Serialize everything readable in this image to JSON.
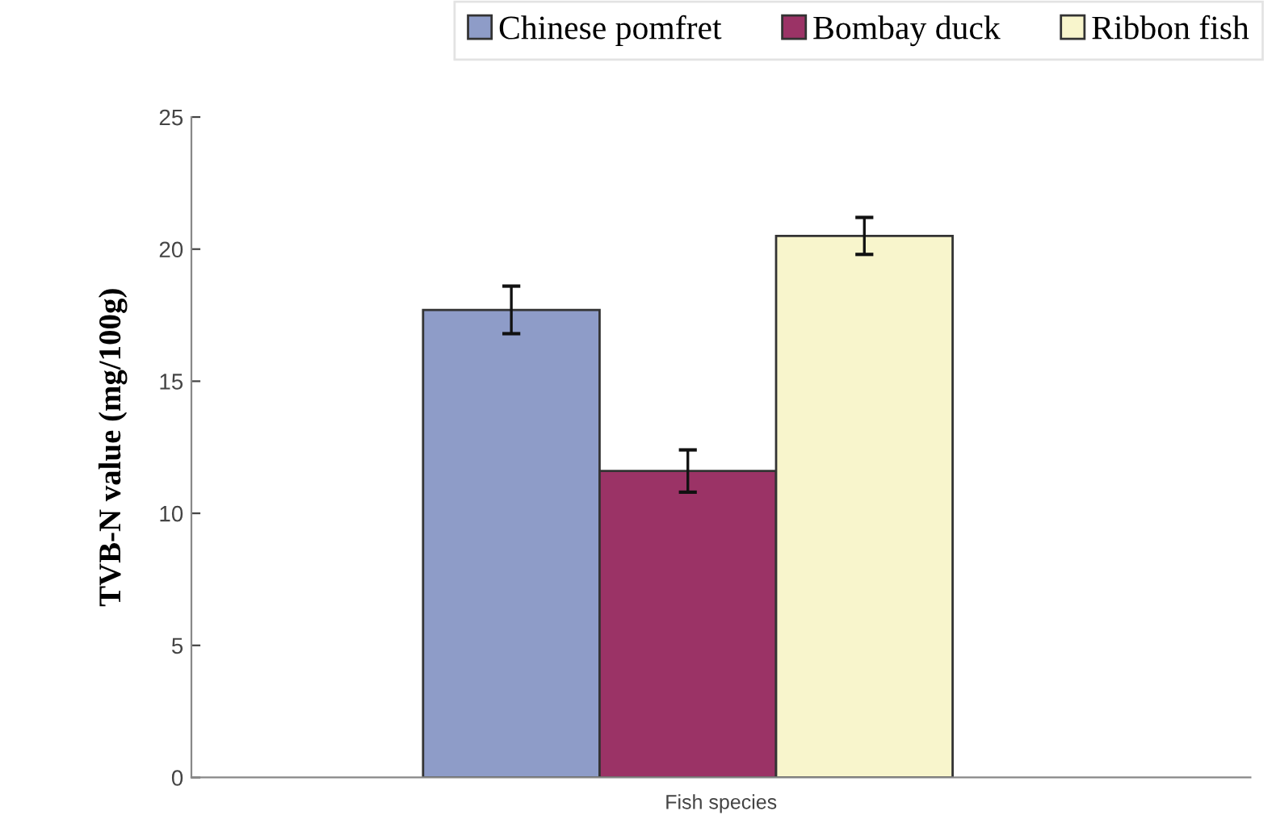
{
  "chart_data": {
    "type": "bar",
    "xlabel": "Fish species",
    "ylabel": "TVB-N value (mg/100g)",
    "categories": [
      null
    ],
    "series": [
      {
        "name": "Chinese pomfret",
        "color": "#8e9cc8",
        "values": [
          17.7
        ],
        "errors": [
          0.9
        ]
      },
      {
        "name": "Bombay duck",
        "color": "#9b3366",
        "values": [
          11.6
        ],
        "errors": [
          0.8
        ]
      },
      {
        "name": "Ribbon fish",
        "color": "#f8f5cc",
        "values": [
          20.5
        ],
        "errors": [
          0.7
        ]
      }
    ],
    "ylim": [
      0,
      25
    ],
    "yticks": [
      0,
      5,
      10,
      15,
      20,
      25
    ],
    "grid": false,
    "legend": "top"
  }
}
